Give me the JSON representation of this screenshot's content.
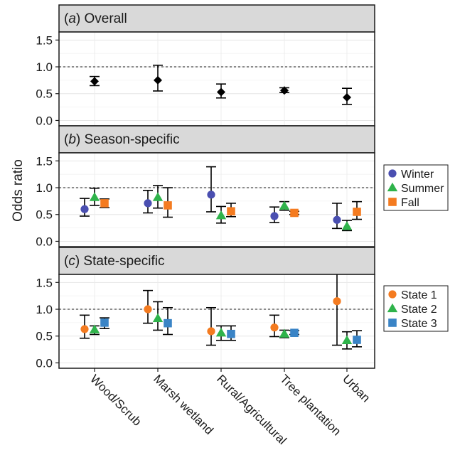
{
  "chart_data": {
    "type": "scatter",
    "ylabel": "Odds ratio",
    "ylim": [
      -0.1,
      1.65
    ],
    "yticks": [
      0.0,
      0.5,
      1.0,
      1.5
    ],
    "ytick_labels": [
      "0.0",
      "0.5",
      "1.0",
      "1.5"
    ],
    "reference_line": 1.0,
    "grid": true,
    "categories": [
      "Wood/Scrub",
      "Marsh wetland",
      "Rural/Agricultural",
      "Tree plantation",
      "Urban"
    ],
    "panels": [
      {
        "label_prefix": "(",
        "label_letter": "a",
        "label_suffix": ") Overall",
        "legend": false,
        "series": [
          {
            "name": "",
            "marker": "diamond",
            "color": "#000000",
            "values": [
              0.73,
              0.75,
              0.53,
              0.56,
              0.43
            ],
            "ci_low": [
              0.65,
              0.55,
              0.42,
              0.52,
              0.3
            ],
            "ci_high": [
              0.82,
              1.03,
              0.68,
              0.61,
              0.6
            ]
          }
        ]
      },
      {
        "label_prefix": "(",
        "label_letter": "b",
        "label_suffix": ") Season-specific",
        "legend": true,
        "series": [
          {
            "name": "Winter",
            "marker": "circle",
            "color": "#4a4fb1",
            "values": [
              0.6,
              0.71,
              0.87,
              0.47,
              0.4
            ],
            "ci_low": [
              0.47,
              0.53,
              0.55,
              0.35,
              0.24
            ],
            "ci_high": [
              0.8,
              0.95,
              1.39,
              0.64,
              0.71
            ]
          },
          {
            "name": "Summer",
            "marker": "triangle",
            "color": "#2fb34b",
            "values": [
              0.82,
              0.82,
              0.48,
              0.66,
              0.28
            ],
            "ci_low": [
              0.67,
              0.62,
              0.34,
              0.58,
              0.2
            ],
            "ci_high": [
              0.99,
              1.04,
              0.65,
              0.74,
              0.39
            ]
          },
          {
            "name": "Fall",
            "marker": "square",
            "color": "#f47b20",
            "values": [
              0.71,
              0.67,
              0.56,
              0.53,
              0.55
            ],
            "ci_low": [
              0.63,
              0.45,
              0.46,
              0.5,
              0.41
            ],
            "ci_high": [
              0.79,
              1.0,
              0.71,
              0.56,
              0.74
            ]
          }
        ]
      },
      {
        "label_prefix": "(",
        "label_letter": "c",
        "label_suffix": ") State-specific",
        "legend": true,
        "series": [
          {
            "name": "State 1",
            "marker": "circle",
            "color": "#f47b20",
            "values": [
              0.63,
              1.0,
              0.59,
              0.66,
              1.15
            ],
            "ci_low": [
              0.46,
              0.74,
              0.33,
              0.49,
              0.33
            ],
            "ci_high": [
              0.89,
              1.35,
              1.03,
              0.89,
              1.65
            ]
          },
          {
            "name": "State 2",
            "marker": "triangle",
            "color": "#2fb34b",
            "values": [
              0.62,
              0.83,
              0.56,
              0.54,
              0.42
            ],
            "ci_low": [
              0.53,
              0.61,
              0.42,
              0.47,
              0.26
            ],
            "ci_high": [
              0.69,
              1.14,
              0.69,
              0.61,
              0.58
            ]
          },
          {
            "name": "State 3",
            "marker": "square",
            "color": "#3a84c6",
            "values": [
              0.75,
              0.74,
              0.54,
              0.56,
              0.43
            ],
            "ci_low": [
              0.64,
              0.53,
              0.42,
              0.53,
              0.3
            ],
            "ci_high": [
              0.84,
              1.03,
              0.69,
              0.6,
              0.6
            ]
          }
        ]
      }
    ]
  }
}
